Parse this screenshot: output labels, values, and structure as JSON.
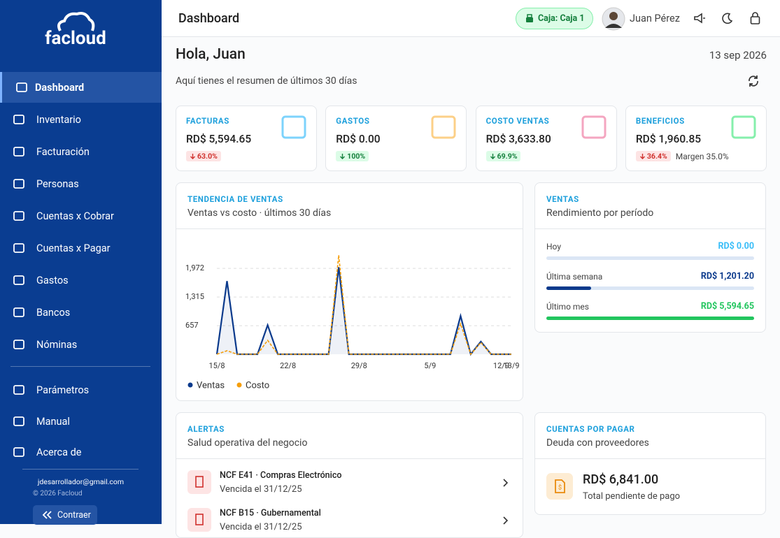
{
  "sidebar": {
    "logo": "facloud",
    "nav": [
      "Dashboard",
      "Inventario",
      "Facturación",
      "Personas",
      "Cuentas x Cobrar",
      "Cuentas x Pagar",
      "Gastos",
      "Bancos",
      "Nóminas"
    ],
    "settings": [
      "Parámetros",
      "Manual",
      "Acerca de"
    ],
    "email": "jdesarrollador@gmail.com",
    "copyright": "© 2026 Facloud",
    "collapse": "Contraer"
  },
  "header": {
    "title": "Dashboard",
    "cash": "Caja: Caja 1",
    "user": "Juan Pérez"
  },
  "greeting": {
    "title": "Hola, Juan",
    "date": "13 sep 2026",
    "subtitle": "Aquí tienes el resumen de últimos 30 días"
  },
  "cards": [
    {
      "label": "FACTURAS",
      "value": "RD$ 5,594.65",
      "change": "63.0%"
    },
    {
      "label": "GASTOS",
      "value": "RD$ 0.00",
      "change": "100%"
    },
    {
      "label": "COSTO VENTAS",
      "value": "RD$ 3,633.80",
      "change": "69.9%"
    },
    {
      "label": "BENEFICIOS",
      "value": "RD$ 1,960.85",
      "change": "36.4%",
      "note": "Margen 35.0%"
    }
  ],
  "chart_data": {
    "type": "line",
    "title": "TENDENCIA DE VENTAS",
    "subtitle": "Ventas vs costo · últimos 30 días",
    "categories": [
      "15/8",
      null,
      null,
      null,
      null,
      null,
      null,
      "22/8",
      null,
      null,
      null,
      null,
      null,
      null,
      "29/8",
      null,
      null,
      null,
      null,
      null,
      null,
      "5/9",
      null,
      null,
      null,
      null,
      null,
      null,
      "12/9",
      "13/9"
    ],
    "series": [
      {
        "name": "Ventas",
        "color": "#0b3a8c",
        "values": [
          0,
          1680,
          0,
          0,
          0,
          670,
          0,
          0,
          0,
          0,
          0,
          0,
          2000,
          0,
          0,
          0,
          0,
          0,
          0,
          0,
          0,
          0,
          0,
          0,
          880,
          0,
          290,
          0,
          0,
          0
        ]
      },
      {
        "name": "Costo",
        "color": "#f59e0b",
        "values": [
          0,
          80,
          0,
          0,
          0,
          320,
          0,
          0,
          0,
          0,
          0,
          0,
          2275,
          0,
          0,
          0,
          0,
          0,
          0,
          0,
          0,
          0,
          0,
          0,
          700,
          0,
          270,
          0,
          0,
          0
        ]
      }
    ],
    "ylim": [
      0,
      2600
    ],
    "yticks": [
      657,
      {
        "value": 1315,
        "label": "1,315"
      },
      {
        "value": 1972,
        "label": "1,972"
      }
    ],
    "grid": true
  },
  "ventas": {
    "title": "VENTAS",
    "subtitle": "Rendimiento por período",
    "categories": [
      "Hoy",
      "Última semana",
      "Último mes"
    ],
    "values": [
      0,
      1201.2,
      5594.65
    ],
    "value_labels": [
      "RD$ 0.00",
      "RD$ 1,201.20",
      "RD$ 5,594.65"
    ],
    "colors": [
      "#38bdf8",
      "#0b3a8c",
      "#22c55e"
    ]
  },
  "alerts": {
    "title": "ALERTAS",
    "subtitle": "Salud operativa del negocio",
    "items": [
      {
        "title": "NCF E41 · Compras Electrónico",
        "detail": "Vencida el 31/12/25"
      },
      {
        "title": "NCF B15 · Gubernamental",
        "detail": "Vencida el 31/12/25"
      }
    ]
  },
  "payables": {
    "title": "CUENTAS POR PAGAR",
    "subtitle": "Deuda con proveedores",
    "amount": "RD$ 6,841.00",
    "note": "Total pendiente de pago"
  }
}
